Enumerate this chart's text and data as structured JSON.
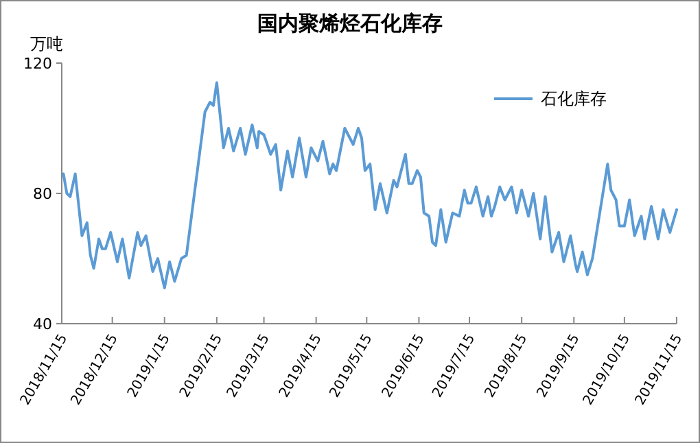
{
  "chart_data": {
    "type": "line",
    "title": "国内聚烯烃石化库存",
    "ylabel": "万吨",
    "xlim": [
      "2018-11-15",
      "2019-11-15"
    ],
    "xticks": [
      {
        "value": "2018-11-15",
        "label": "2018/11/15"
      },
      {
        "value": "2018-12-15",
        "label": "2018/12/15"
      },
      {
        "value": "2019-01-15",
        "label": "2019/1/15"
      },
      {
        "value": "2019-02-15",
        "label": "2019/2/15"
      },
      {
        "value": "2019-03-15",
        "label": "2019/3/15"
      },
      {
        "value": "2019-04-15",
        "label": "2019/4/15"
      },
      {
        "value": "2019-05-15",
        "label": "2019/5/15"
      },
      {
        "value": "2019-06-15",
        "label": "2019/6/15"
      },
      {
        "value": "2019-07-15",
        "label": "2019/7/15"
      },
      {
        "value": "2019-08-15",
        "label": "2019/8/15"
      },
      {
        "value": "2019-09-15",
        "label": "2019/9/15"
      },
      {
        "value": "2019-10-15",
        "label": "2019/10/15"
      },
      {
        "value": "2019-11-15",
        "label": "2019/11/15"
      }
    ],
    "ylim": [
      40,
      120
    ],
    "yticks": [
      40,
      80,
      120
    ],
    "grid": false,
    "legend": "top right",
    "marker": "none",
    "line_style": "solid",
    "series": [
      {
        "name": "石化库存",
        "color": "#5b9bd5",
        "x": [
          "2018-11-16",
          "2018-11-18",
          "2018-11-20",
          "2018-11-23",
          "2018-11-27",
          "2018-11-30",
          "2018-12-02",
          "2018-12-04",
          "2018-12-07",
          "2018-12-09",
          "2018-12-11",
          "2018-12-14",
          "2018-12-18",
          "2018-12-21",
          "2018-12-25",
          "2018-12-30",
          "2019-01-01",
          "2019-01-04",
          "2019-01-08",
          "2019-01-11",
          "2019-01-15",
          "2019-01-18",
          "2019-01-21",
          "2019-01-25",
          "2019-01-28",
          "2019-02-08",
          "2019-02-11",
          "2019-02-13",
          "2019-02-15",
          "2019-02-19",
          "2019-02-22",
          "2019-02-25",
          "2019-03-01",
          "2019-03-04",
          "2019-03-08",
          "2019-03-11",
          "2019-03-12",
          "2019-03-15",
          "2019-03-19",
          "2019-03-22",
          "2019-03-25",
          "2019-03-29",
          "2019-04-01",
          "2019-04-05",
          "2019-04-09",
          "2019-04-12",
          "2019-04-16",
          "2019-04-19",
          "2019-04-23",
          "2019-04-25",
          "2019-04-27",
          "2019-05-02",
          "2019-05-05",
          "2019-05-07",
          "2019-05-10",
          "2019-05-12",
          "2019-05-14",
          "2019-05-17",
          "2019-05-20",
          "2019-05-23",
          "2019-05-27",
          "2019-05-31",
          "2019-06-02",
          "2019-06-07",
          "2019-06-09",
          "2019-06-11",
          "2019-06-14",
          "2019-06-16",
          "2019-06-18",
          "2019-06-21",
          "2019-06-23",
          "2019-06-25",
          "2019-06-28",
          "2019-07-01",
          "2019-07-05",
          "2019-07-09",
          "2019-07-12",
          "2019-07-14",
          "2019-07-16",
          "2019-07-19",
          "2019-07-23",
          "2019-07-26",
          "2019-07-28",
          "2019-07-30",
          "2019-08-02",
          "2019-08-05",
          "2019-08-09",
          "2019-08-12",
          "2019-08-15",
          "2019-08-19",
          "2019-08-22",
          "2019-08-26",
          "2019-08-29",
          "2019-09-02",
          "2019-09-06",
          "2019-09-09",
          "2019-09-13",
          "2019-09-16",
          "2019-09-17",
          "2019-09-20",
          "2019-09-23",
          "2019-09-26",
          "2019-10-05",
          "2019-10-07",
          "2019-10-10",
          "2019-10-12",
          "2019-10-15",
          "2019-10-18",
          "2019-10-21",
          "2019-10-25",
          "2019-10-27",
          "2019-10-31",
          "2019-11-04",
          "2019-11-07",
          "2019-11-11",
          "2019-11-15"
        ],
        "values": [
          86,
          80,
          79,
          86,
          67,
          71,
          61,
          57,
          66,
          63,
          63,
          68,
          59,
          66,
          54,
          68,
          64,
          67,
          56,
          60,
          51,
          59,
          53,
          60,
          61,
          105,
          108,
          107,
          114,
          94,
          100,
          93,
          100,
          92,
          101,
          94,
          99,
          98,
          92,
          95,
          81,
          93,
          85,
          97,
          85,
          94,
          90,
          96,
          86,
          89,
          87,
          100,
          97,
          95,
          100,
          97,
          87,
          89,
          75,
          83,
          74,
          84,
          82,
          92,
          83,
          83,
          87,
          85,
          74,
          73,
          65,
          64,
          75,
          65,
          74,
          73,
          81,
          77,
          77,
          82,
          73,
          79,
          73,
          76,
          82,
          78,
          82,
          74,
          81,
          73,
          80,
          66,
          79,
          62,
          68,
          59,
          67,
          58,
          56,
          62,
          55,
          60,
          89,
          81,
          78,
          70,
          70,
          78,
          67,
          73,
          66,
          76,
          66,
          75,
          68,
          75
        ]
      }
    ]
  }
}
